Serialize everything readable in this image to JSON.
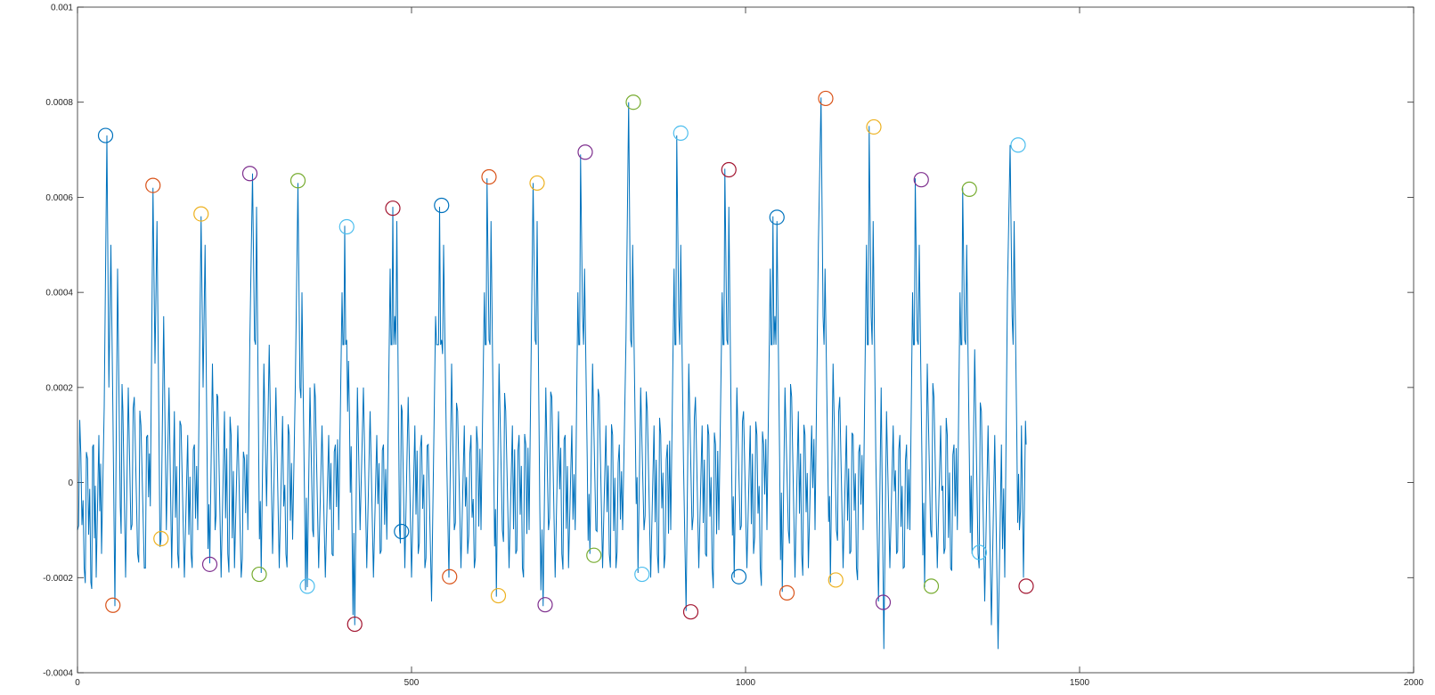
{
  "chart_data": {
    "type": "line",
    "title": "",
    "xlabel": "",
    "ylabel": "",
    "xlim": [
      0,
      2000
    ],
    "ylim": [
      -0.0004,
      0.001
    ],
    "x_ticks": [
      {
        "value": 0,
        "label": "0"
      },
      {
        "value": 500,
        "label": "500"
      },
      {
        "value": 1000,
        "label": "1000"
      },
      {
        "value": 1500,
        "label": "1500"
      },
      {
        "value": 2000,
        "label": "2000"
      }
    ],
    "y_ticks": [
      {
        "value": -0.0004,
        "label": "-0.0004"
      },
      {
        "value": -0.0002,
        "label": "-0.0002"
      },
      {
        "value": 0,
        "label": "0"
      },
      {
        "value": 0.0002,
        "label": "0.0002"
      },
      {
        "value": 0.0004,
        "label": "0.0004"
      },
      {
        "value": 0.0006,
        "label": "0.0006"
      },
      {
        "value": 0.0008,
        "label": "0.0008"
      },
      {
        "value": 0.001,
        "label": "0.001"
      }
    ],
    "grid": false,
    "line_color": "#0072bd",
    "signal_x_range": [
      0,
      1420
    ],
    "signal": [
      [
        0,
        -0.0001
      ],
      [
        5,
        6e-05
      ],
      [
        10,
        -0.00018
      ],
      [
        15,
        5e-05
      ],
      [
        20,
        -0.00021
      ],
      [
        24,
        8e-05
      ],
      [
        28,
        -0.0002
      ],
      [
        32,
        0.0001
      ],
      [
        36,
        -0.00015
      ],
      [
        40,
        0.00016
      ],
      [
        44,
        0.00073
      ],
      [
        47,
        0.0002
      ],
      [
        50,
        0.0005
      ],
      [
        53,
        0.00015
      ],
      [
        56,
        -0.00026
      ],
      [
        60,
        0.00045
      ],
      [
        64,
        -5e-05
      ],
      [
        68,
        0.00015
      ],
      [
        72,
        -0.0002
      ],
      [
        76,
        0.0002
      ],
      [
        80,
        -0.0001
      ],
      [
        85,
        0.00018
      ],
      [
        90,
        -0.00015
      ],
      [
        95,
        0.00012
      ],
      [
        100,
        -0.00018
      ],
      [
        105,
        0.0001
      ],
      [
        109,
        -5e-05
      ],
      [
        113,
        0.00062
      ],
      [
        116,
        0.00025
      ],
      [
        119,
        0.00055
      ],
      [
        122,
        0.0001
      ],
      [
        125,
        -0.00012
      ],
      [
        129,
        0.00035
      ],
      [
        133,
        -0.0001
      ],
      [
        137,
        0.0002
      ],
      [
        141,
        -0.00018
      ],
      [
        145,
        0.00015
      ],
      [
        150,
        -0.00015
      ],
      [
        155,
        0.00012
      ],
      [
        160,
        -0.0002
      ],
      [
        165,
        0.0001
      ],
      [
        170,
        -0.00015
      ],
      [
        175,
        8e-05
      ],
      [
        180,
        -0.0001
      ],
      [
        185,
        0.00056
      ],
      [
        188,
        0.0002
      ],
      [
        191,
        0.0005
      ],
      [
        194,
        5e-05
      ],
      [
        198,
        -0.00017
      ],
      [
        202,
        0.00025
      ],
      [
        206,
        -0.0001
      ],
      [
        210,
        0.00018
      ],
      [
        215,
        -0.0002
      ],
      [
        220,
        0.00015
      ],
      [
        225,
        -0.00015
      ],
      [
        230,
        0.0001
      ],
      [
        235,
        -0.00018
      ],
      [
        240,
        0.00012
      ],
      [
        245,
        -0.0002
      ],
      [
        250,
        5e-05
      ],
      [
        255,
        -0.0001
      ],
      [
        258,
        0.0003
      ],
      [
        262,
        0.00065
      ],
      [
        265,
        0.0003
      ],
      [
        268,
        0.00058
      ],
      [
        271,
        0.0001
      ],
      [
        275,
        -0.00019
      ],
      [
        279,
        0.00025
      ],
      [
        283,
        -5e-05
      ],
      [
        287,
        0.00029
      ],
      [
        292,
        -0.00015
      ],
      [
        297,
        0.0002
      ],
      [
        302,
        -0.00018
      ],
      [
        307,
        0.00014
      ],
      [
        312,
        -0.00015
      ],
      [
        317,
        0.0001
      ],
      [
        322,
        -0.00012
      ],
      [
        326,
        0.0002
      ],
      [
        330,
        0.00063
      ],
      [
        333,
        0.0002
      ],
      [
        336,
        0.0004
      ],
      [
        340,
        -5e-05
      ],
      [
        344,
        -0.00022
      ],
      [
        348,
        0.0002
      ],
      [
        352,
        -0.0001
      ],
      [
        356,
        0.00018
      ],
      [
        361,
        -0.00018
      ],
      [
        366,
        0.00012
      ],
      [
        371,
        -0.0002
      ],
      [
        376,
        0.0001
      ],
      [
        381,
        -0.00015
      ],
      [
        386,
        8e-05
      ],
      [
        391,
        -0.0001
      ],
      [
        396,
        0.0004
      ],
      [
        400,
        0.00054
      ],
      [
        403,
        0.0003
      ],
      [
        407,
        0.00015
      ],
      [
        411,
        -0.0001
      ],
      [
        415,
        -0.0003
      ],
      [
        419,
        0.0002
      ],
      [
        423,
        -0.0001
      ],
      [
        428,
        0.0002
      ],
      [
        433,
        -0.00018
      ],
      [
        438,
        0.00015
      ],
      [
        443,
        -0.0002
      ],
      [
        448,
        0.0001
      ],
      [
        453,
        -0.00015
      ],
      [
        458,
        8e-05
      ],
      [
        463,
        -0.00012
      ],
      [
        468,
        0.00045
      ],
      [
        472,
        0.00058
      ],
      [
        475,
        0.00035
      ],
      [
        478,
        0.00055
      ],
      [
        482,
        -0.0001
      ],
      [
        486,
        0.00015
      ],
      [
        490,
        -0.00018
      ],
      [
        495,
        0.00018
      ],
      [
        500,
        -0.0002
      ],
      [
        505,
        0.00012
      ],
      [
        510,
        -0.00015
      ],
      [
        515,
        0.0001
      ],
      [
        520,
        -0.00018
      ],
      [
        525,
        8e-05
      ],
      [
        530,
        -0.00025
      ],
      [
        536,
        0.00035
      ],
      [
        542,
        0.00058
      ],
      [
        545,
        0.0003
      ],
      [
        548,
        0.0005
      ],
      [
        552,
        0.0001
      ],
      [
        556,
        -0.0002
      ],
      [
        560,
        0.00025
      ],
      [
        564,
        -0.0001
      ],
      [
        569,
        0.00015
      ],
      [
        574,
        -0.00018
      ],
      [
        579,
        0.00012
      ],
      [
        584,
        -0.00015
      ],
      [
        589,
        0.0001
      ],
      [
        594,
        -0.00018
      ],
      [
        599,
        8e-05
      ],
      [
        604,
        -0.0001
      ],
      [
        609,
        0.0004
      ],
      [
        613,
        0.00064
      ],
      [
        616,
        0.0003
      ],
      [
        619,
        0.00055
      ],
      [
        623,
        5e-05
      ],
      [
        627,
        -0.00024
      ],
      [
        631,
        0.00025
      ],
      [
        636,
        -0.0001
      ],
      [
        641,
        0.00015
      ],
      [
        646,
        -0.00018
      ],
      [
        651,
        0.00012
      ],
      [
        656,
        -0.00015
      ],
      [
        661,
        0.0001
      ],
      [
        666,
        -0.00018
      ],
      [
        671,
        8e-05
      ],
      [
        676,
        -0.0001
      ],
      [
        682,
        0.00063
      ],
      [
        685,
        0.0003
      ],
      [
        688,
        0.00055
      ],
      [
        692,
        -5e-05
      ],
      [
        697,
        -0.00026
      ],
      [
        701,
        0.0002
      ],
      [
        705,
        -0.0001
      ],
      [
        710,
        0.00018
      ],
      [
        715,
        -0.0002
      ],
      [
        720,
        0.00015
      ],
      [
        725,
        -0.00015
      ],
      [
        730,
        0.0001
      ],
      [
        735,
        -0.00018
      ],
      [
        740,
        0.00012
      ],
      [
        745,
        -0.0001
      ],
      [
        749,
        0.0004
      ],
      [
        753,
        0.00069
      ],
      [
        756,
        0.00035
      ],
      [
        759,
        0.00045
      ],
      [
        763,
        5e-05
      ],
      [
        767,
        -0.00015
      ],
      [
        771,
        0.00025
      ],
      [
        776,
        -0.0001
      ],
      [
        781,
        0.00018
      ],
      [
        786,
        -0.00018
      ],
      [
        791,
        0.00012
      ],
      [
        796,
        -0.00015
      ],
      [
        801,
        0.0001
      ],
      [
        806,
        -0.00018
      ],
      [
        811,
        8e-05
      ],
      [
        816,
        -0.0001
      ],
      [
        821,
        0.0003
      ],
      [
        825,
        0.0008
      ],
      [
        828,
        0.0003
      ],
      [
        831,
        0.0005
      ],
      [
        835,
        0.0001
      ],
      [
        839,
        -0.00019
      ],
      [
        843,
        0.0002
      ],
      [
        848,
        -0.0001
      ],
      [
        853,
        0.00015
      ],
      [
        858,
        -0.0002
      ],
      [
        863,
        0.00012
      ],
      [
        868,
        -0.00015
      ],
      [
        873,
        0.0001
      ],
      [
        878,
        -0.00018
      ],
      [
        883,
        8e-05
      ],
      [
        888,
        -0.0001
      ],
      [
        893,
        0.00045
      ],
      [
        897,
        0.00073
      ],
      [
        900,
        0.00035
      ],
      [
        903,
        0.0005
      ],
      [
        907,
        5e-05
      ],
      [
        911,
        -0.00027
      ],
      [
        915,
        0.00025
      ],
      [
        920,
        -0.0001
      ],
      [
        925,
        0.00018
      ],
      [
        930,
        -0.00018
      ],
      [
        935,
        0.00012
      ],
      [
        940,
        -0.00015
      ],
      [
        945,
        0.0001
      ],
      [
        950,
        -0.00018
      ],
      [
        955,
        8e-05
      ],
      [
        960,
        -0.0001
      ],
      [
        965,
        0.0004
      ],
      [
        969,
        0.00066
      ],
      [
        972,
        0.0003
      ],
      [
        975,
        0.00058
      ],
      [
        979,
        5e-05
      ],
      [
        983,
        -0.0002
      ],
      [
        987,
        0.0002
      ],
      [
        992,
        -0.0001
      ],
      [
        997,
        0.00015
      ],
      [
        1002,
        -0.00018
      ],
      [
        1007,
        0.00012
      ],
      [
        1012,
        -0.00015
      ],
      [
        1017,
        0.0001
      ],
      [
        1022,
        -0.00018
      ],
      [
        1027,
        8e-05
      ],
      [
        1032,
        -0.0001
      ],
      [
        1037,
        0.00045
      ],
      [
        1041,
        0.00056
      ],
      [
        1044,
        0.00035
      ],
      [
        1047,
        0.00055
      ],
      [
        1051,
        5e-05
      ],
      [
        1055,
        -0.00023
      ],
      [
        1059,
        0.0002
      ],
      [
        1064,
        -0.0001
      ],
      [
        1069,
        0.00018
      ],
      [
        1074,
        -0.0002
      ],
      [
        1079,
        0.00015
      ],
      [
        1084,
        -0.00015
      ],
      [
        1089,
        0.0001
      ],
      [
        1094,
        -0.00018
      ],
      [
        1099,
        0.00012
      ],
      [
        1104,
        -0.0001
      ],
      [
        1109,
        0.0005
      ],
      [
        1113,
        0.00081
      ],
      [
        1116,
        0.00035
      ],
      [
        1119,
        0.00045
      ],
      [
        1123,
        5e-05
      ],
      [
        1127,
        -0.00021
      ],
      [
        1131,
        0.00025
      ],
      [
        1136,
        -0.0001
      ],
      [
        1141,
        0.00018
      ],
      [
        1146,
        -0.00018
      ],
      [
        1151,
        0.00012
      ],
      [
        1156,
        -0.00015
      ],
      [
        1161,
        0.0001
      ],
      [
        1166,
        -0.00018
      ],
      [
        1171,
        8e-05
      ],
      [
        1176,
        -0.0001
      ],
      [
        1181,
        0.0005
      ],
      [
        1185,
        0.00075
      ],
      [
        1188,
        0.00035
      ],
      [
        1191,
        0.00055
      ],
      [
        1195,
        5e-05
      ],
      [
        1199,
        -0.00025
      ],
      [
        1203,
        0.0002
      ],
      [
        1207,
        -0.00035
      ],
      [
        1211,
        0.00015
      ],
      [
        1216,
        -0.00018
      ],
      [
        1221,
        0.00012
      ],
      [
        1226,
        -0.00015
      ],
      [
        1231,
        0.0001
      ],
      [
        1236,
        -0.00018
      ],
      [
        1241,
        8e-05
      ],
      [
        1246,
        -0.0001
      ],
      [
        1250,
        0.0004
      ],
      [
        1254,
        0.00064
      ],
      [
        1257,
        0.0003
      ],
      [
        1260,
        0.0005
      ],
      [
        1264,
        5e-05
      ],
      [
        1268,
        -0.00022
      ],
      [
        1272,
        0.00025
      ],
      [
        1277,
        -0.0001
      ],
      [
        1282,
        0.00018
      ],
      [
        1287,
        -0.00018
      ],
      [
        1292,
        0.00012
      ],
      [
        1297,
        -0.00015
      ],
      [
        1302,
        0.0001
      ],
      [
        1307,
        -0.00018
      ],
      [
        1312,
        8e-05
      ],
      [
        1317,
        -0.0001
      ],
      [
        1321,
        0.0004
      ],
      [
        1325,
        0.00062
      ],
      [
        1328,
        0.0003
      ],
      [
        1331,
        0.0005
      ],
      [
        1335,
        5e-05
      ],
      [
        1339,
        -0.00015
      ],
      [
        1343,
        0.00028
      ],
      [
        1348,
        -0.00015
      ],
      [
        1353,
        0.00015
      ],
      [
        1358,
        -0.00025
      ],
      [
        1363,
        0.00012
      ],
      [
        1368,
        -0.0003
      ],
      [
        1373,
        0.0001
      ],
      [
        1378,
        -0.00035
      ],
      [
        1383,
        8e-05
      ],
      [
        1388,
        -0.0002
      ],
      [
        1392,
        0.0004
      ],
      [
        1396,
        0.00071
      ],
      [
        1399,
        0.00035
      ],
      [
        1402,
        0.00055
      ],
      [
        1406,
        0.0001
      ],
      [
        1410,
        -0.0001
      ],
      [
        1413,
        0.00012
      ],
      [
        1416,
        -0.0002
      ],
      [
        1419,
        0.00013
      ],
      [
        1420,
        8e-05
      ]
    ],
    "peak_markers": [
      {
        "x": 42,
        "y": 0.00073,
        "color": "#0072bd"
      },
      {
        "x": 113,
        "y": 0.000625,
        "color": "#d95319"
      },
      {
        "x": 185,
        "y": 0.000565,
        "color": "#edb120"
      },
      {
        "x": 258,
        "y": 0.00065,
        "color": "#7e2f8e"
      },
      {
        "x": 330,
        "y": 0.000635,
        "color": "#77ac30"
      },
      {
        "x": 403,
        "y": 0.000538,
        "color": "#4dbeee"
      },
      {
        "x": 472,
        "y": 0.000577,
        "color": "#a2142f"
      },
      {
        "x": 545,
        "y": 0.000583,
        "color": "#0072bd"
      },
      {
        "x": 616,
        "y": 0.000643,
        "color": "#d95319"
      },
      {
        "x": 688,
        "y": 0.00063,
        "color": "#edb120"
      },
      {
        "x": 760,
        "y": 0.000695,
        "color": "#7e2f8e"
      },
      {
        "x": 832,
        "y": 0.0008,
        "color": "#77ac30"
      },
      {
        "x": 903,
        "y": 0.000735,
        "color": "#4dbeee"
      },
      {
        "x": 975,
        "y": 0.000658,
        "color": "#a2142f"
      },
      {
        "x": 1047,
        "y": 0.000558,
        "color": "#0072bd"
      },
      {
        "x": 1120,
        "y": 0.000808,
        "color": "#d95319"
      },
      {
        "x": 1192,
        "y": 0.000748,
        "color": "#edb120"
      },
      {
        "x": 1263,
        "y": 0.000637,
        "color": "#7e2f8e"
      },
      {
        "x": 1335,
        "y": 0.000617,
        "color": "#77ac30"
      },
      {
        "x": 1408,
        "y": 0.00071,
        "color": "#4dbeee"
      }
    ],
    "trough_markers": [
      {
        "x": 53,
        "y": -0.000258,
        "color": "#d95319"
      },
      {
        "x": 125,
        "y": -0.000118,
        "color": "#edb120"
      },
      {
        "x": 198,
        "y": -0.000172,
        "color": "#7e2f8e"
      },
      {
        "x": 272,
        "y": -0.000193,
        "color": "#77ac30"
      },
      {
        "x": 344,
        "y": -0.000218,
        "color": "#4dbeee"
      },
      {
        "x": 415,
        "y": -0.000298,
        "color": "#a2142f"
      },
      {
        "x": 485,
        "y": -0.000103,
        "color": "#0072bd"
      },
      {
        "x": 557,
        "y": -0.000198,
        "color": "#d95319"
      },
      {
        "x": 630,
        "y": -0.000238,
        "color": "#edb120"
      },
      {
        "x": 700,
        "y": -0.000257,
        "color": "#7e2f8e"
      },
      {
        "x": 773,
        "y": -0.000153,
        "color": "#77ac30"
      },
      {
        "x": 845,
        "y": -0.000193,
        "color": "#4dbeee"
      },
      {
        "x": 918,
        "y": -0.000272,
        "color": "#a2142f"
      },
      {
        "x": 990,
        "y": -0.000198,
        "color": "#0072bd"
      },
      {
        "x": 1062,
        "y": -0.000232,
        "color": "#d95319"
      },
      {
        "x": 1135,
        "y": -0.000205,
        "color": "#edb120"
      },
      {
        "x": 1206,
        "y": -0.000252,
        "color": "#7e2f8e"
      },
      {
        "x": 1278,
        "y": -0.000218,
        "color": "#77ac30"
      },
      {
        "x": 1350,
        "y": -0.000147,
        "color": "#4dbeee"
      },
      {
        "x": 1420,
        "y": -0.000218,
        "color": "#a2142f"
      }
    ]
  }
}
